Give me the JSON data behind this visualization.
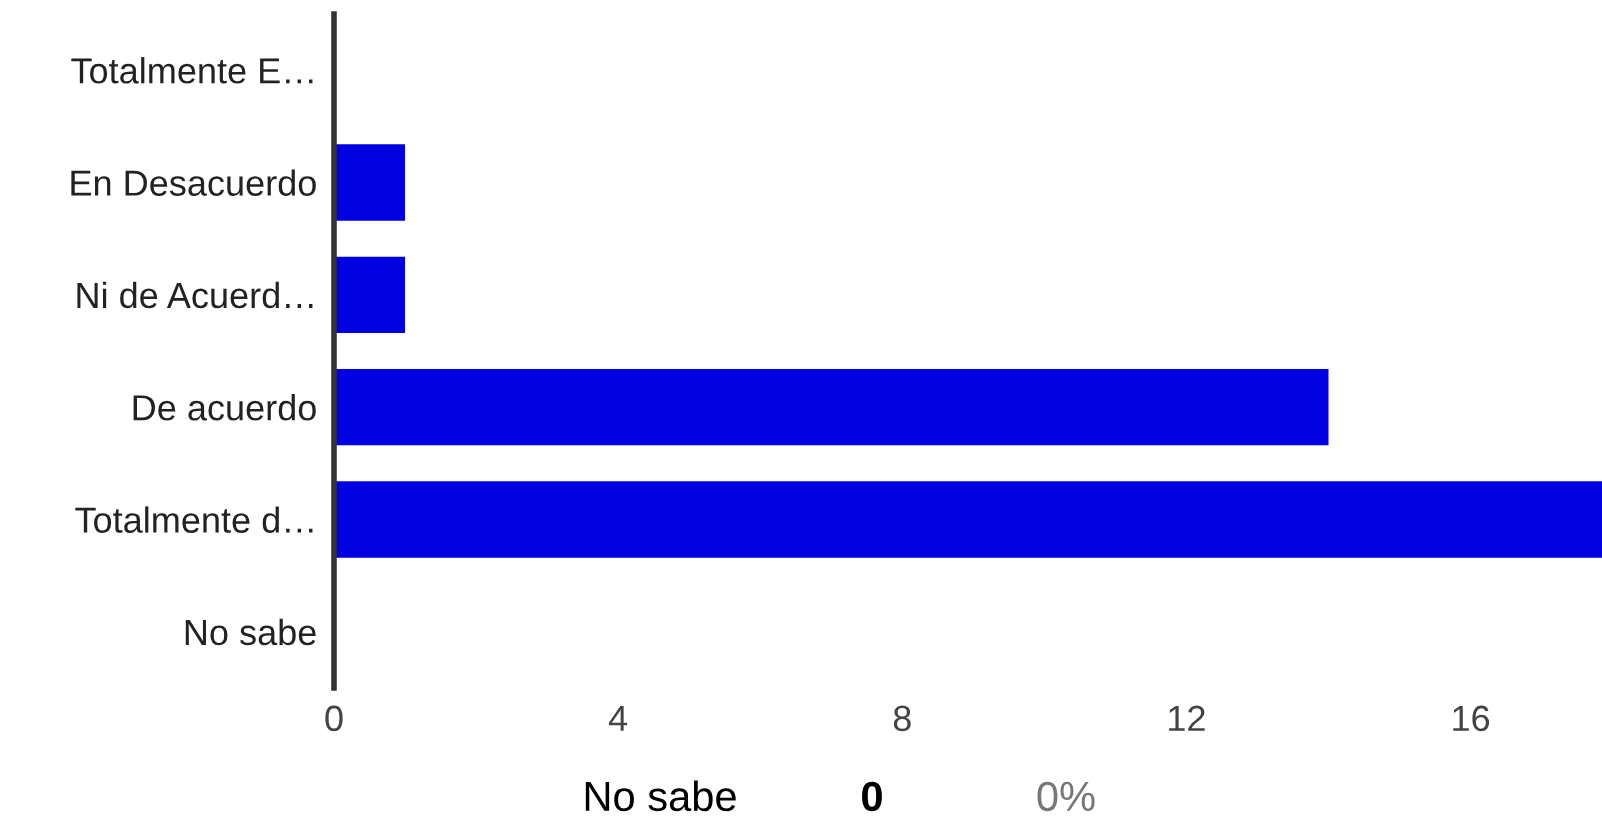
{
  "chart_data": {
    "type": "bar",
    "orientation": "horizontal",
    "categories": [
      "Totalmente E…",
      "En Desacuerdo",
      "Ni de Acuerd…",
      "De acuerdo",
      "Totalmente d…",
      "No sabe"
    ],
    "values": [
      0,
      1,
      1,
      14,
      18,
      0
    ],
    "color": "#0000e0",
    "xlim": [
      0,
      18
    ],
    "xticks": [
      0,
      4,
      8,
      12,
      16
    ],
    "grid": false,
    "annotations": [
      "No sabe",
      "0",
      "0%"
    ]
  }
}
